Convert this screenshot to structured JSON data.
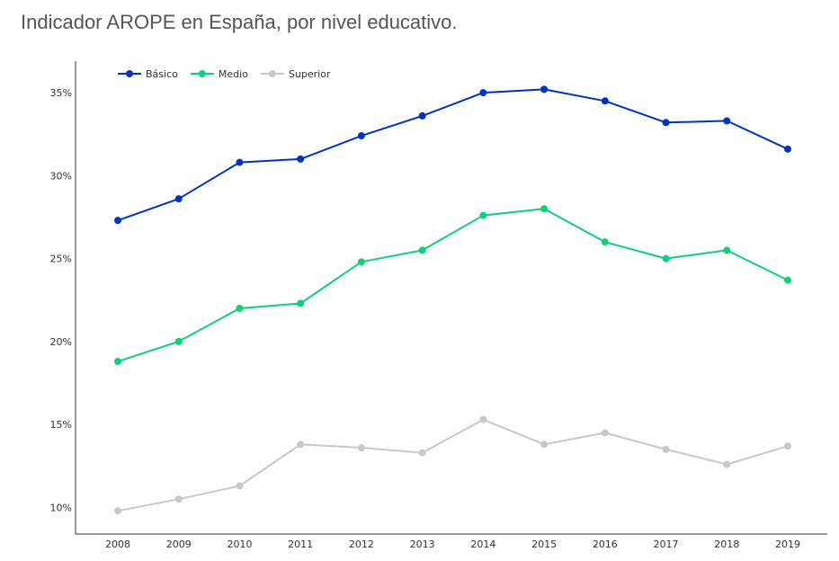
{
  "chart_data": {
    "type": "line",
    "title": "Indicador AROPE en España, por nivel educativo.",
    "xlabel": "",
    "ylabel": "",
    "x": [
      "2008",
      "2009",
      "2010",
      "2011",
      "2012",
      "2013",
      "2014",
      "2015",
      "2016",
      "2017",
      "2018",
      "2019"
    ],
    "ylim": [
      8.4,
      36.9
    ],
    "yticks": [
      10,
      15,
      20,
      25,
      30,
      35
    ],
    "ytick_suffix": "%",
    "grid": false,
    "legend_position": "top-left",
    "series": [
      {
        "name": "Básico",
        "color": "#0033c4",
        "values": [
          27.3,
          28.6,
          30.8,
          31.0,
          32.4,
          33.6,
          35.0,
          35.2,
          34.5,
          33.2,
          33.3,
          31.6
        ]
      },
      {
        "name": "Medio",
        "color": "#10cf7c",
        "values": [
          18.8,
          20.0,
          22.0,
          22.3,
          24.8,
          25.5,
          27.6,
          28.0,
          26.0,
          25.0,
          25.5,
          23.7
        ]
      },
      {
        "name": "Superior",
        "color": "#c8c8c8",
        "values": [
          9.8,
          10.5,
          11.3,
          13.8,
          13.6,
          13.3,
          15.3,
          13.8,
          14.5,
          13.5,
          12.6,
          13.7
        ]
      }
    ]
  }
}
